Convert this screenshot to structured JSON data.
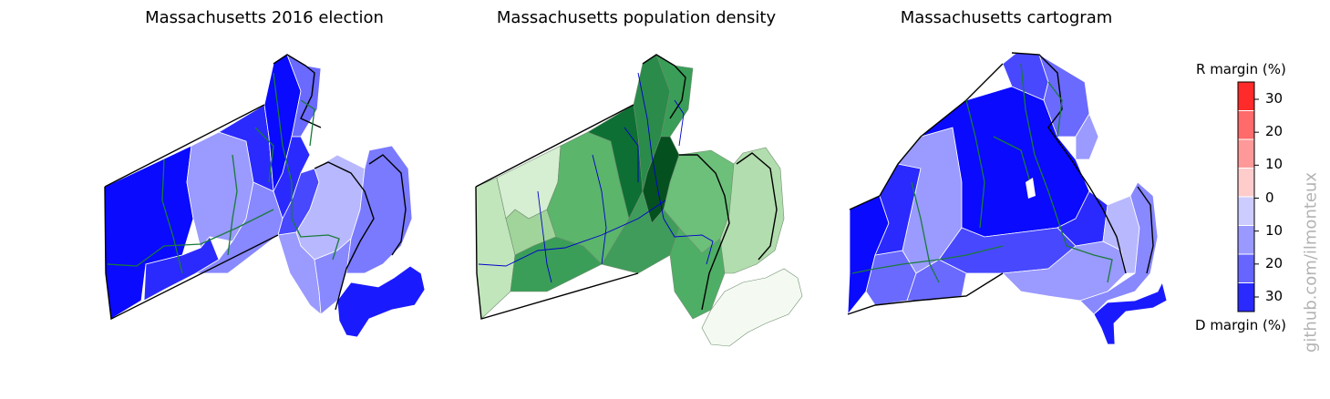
{
  "panels": [
    {
      "title": "Massachusetts 2016 election"
    },
    {
      "title": "Massachusetts population density"
    },
    {
      "title": "Massachusetts cartogram"
    }
  ],
  "colorbar": {
    "top_label": "R margin (%)",
    "bottom_label": "D margin (%)",
    "ticks": [
      "30",
      "20",
      "10",
      "0",
      "10",
      "20",
      "30"
    ],
    "bins": [
      "#ff2a2a",
      "#ff6a6a",
      "#ff9999",
      "#ffcccc",
      "#ccccff",
      "#9999ff",
      "#6666ff",
      "#2a2aff"
    ]
  },
  "watermark": "github.com/ilmonteux",
  "colors": {
    "dem_strong": "#0a0aff",
    "dem_mid": "#4848ff",
    "dem_light": "#9a9aff",
    "dem_pale": "#b8b8ff",
    "district_line": "#1a7a3a",
    "density_dark": "#0b6b31",
    "density_mid": "#36a05a",
    "density_light": "#b5dfb0",
    "density_pale": "#f4faf2",
    "river": "#0000cc"
  }
}
